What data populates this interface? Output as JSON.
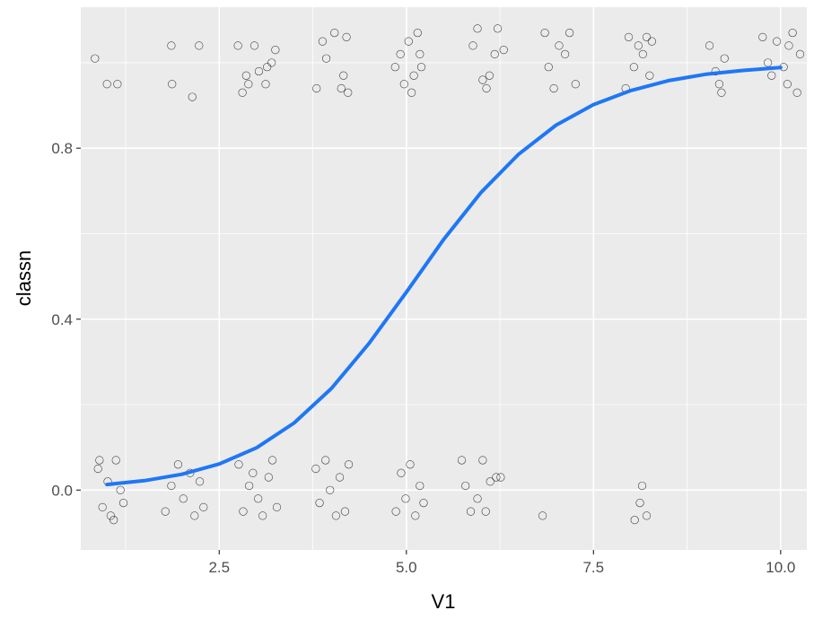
{
  "chart_data": {
    "type": "scatter",
    "title": "",
    "xlabel": "V1",
    "ylabel": "classn",
    "xlim": [
      0.65,
      10.35
    ],
    "ylim": [
      -0.14,
      1.13
    ],
    "x_ticks": [
      2.5,
      5.0,
      7.5,
      10.0
    ],
    "x_tick_labels": [
      "2.5",
      "5.0",
      "7.5",
      "10.0"
    ],
    "x_minor_ticks": [
      1.25,
      3.75,
      6.25,
      8.75
    ],
    "y_ticks": [
      0.0,
      0.4,
      0.8
    ],
    "y_tick_labels": [
      "0.0",
      "0.4",
      "0.8"
    ],
    "y_minor_ticks": [
      0.2,
      0.6,
      1.0
    ],
    "grid": true,
    "background": "#ebebeb",
    "grid_color": "#ffffff",
    "point_color": "#000000",
    "point_fill": "none",
    "curve_color": "#1f77f4",
    "points_approx": [
      [
        0.84,
        1.01
      ],
      [
        1.0,
        0.95
      ],
      [
        1.14,
        0.95
      ],
      [
        1.86,
        1.04
      ],
      [
        1.87,
        0.95
      ],
      [
        2.14,
        0.92
      ],
      [
        2.23,
        1.04
      ],
      [
        2.75,
        1.04
      ],
      [
        2.81,
        0.93
      ],
      [
        2.86,
        0.97
      ],
      [
        2.89,
        0.95
      ],
      [
        2.97,
        1.04
      ],
      [
        3.03,
        0.98
      ],
      [
        3.14,
        0.99
      ],
      [
        3.2,
        1.0
      ],
      [
        3.12,
        0.95
      ],
      [
        3.25,
        1.03
      ],
      [
        3.8,
        0.94
      ],
      [
        3.88,
        1.05
      ],
      [
        3.93,
        1.01
      ],
      [
        4.04,
        1.07
      ],
      [
        4.16,
        0.97
      ],
      [
        4.2,
        1.06
      ],
      [
        4.13,
        0.94
      ],
      [
        4.22,
        0.93
      ],
      [
        4.85,
        0.99
      ],
      [
        4.92,
        1.02
      ],
      [
        4.97,
        0.95
      ],
      [
        5.03,
        1.05
      ],
      [
        5.1,
        0.97
      ],
      [
        5.15,
        1.07
      ],
      [
        5.2,
        0.99
      ],
      [
        5.07,
        0.93
      ],
      [
        5.18,
        1.02
      ],
      [
        5.89,
        1.04
      ],
      [
        5.95,
        1.08
      ],
      [
        6.02,
        0.96
      ],
      [
        6.07,
        0.94
      ],
      [
        6.11,
        0.97
      ],
      [
        6.18,
        1.02
      ],
      [
        6.22,
        1.08
      ],
      [
        6.3,
        1.03
      ],
      [
        6.85,
        1.07
      ],
      [
        6.9,
        0.99
      ],
      [
        6.97,
        0.94
      ],
      [
        7.04,
        1.04
      ],
      [
        7.12,
        1.02
      ],
      [
        7.18,
        1.07
      ],
      [
        7.26,
        0.95
      ],
      [
        7.97,
        1.06
      ],
      [
        8.04,
        0.99
      ],
      [
        8.1,
        1.04
      ],
      [
        8.16,
        1.02
      ],
      [
        8.25,
        0.97
      ],
      [
        7.93,
        0.94
      ],
      [
        8.21,
        1.06
      ],
      [
        8.28,
        1.05
      ],
      [
        9.05,
        1.04
      ],
      [
        9.13,
        0.98
      ],
      [
        9.18,
        0.95
      ],
      [
        9.25,
        1.01
      ],
      [
        9.21,
        0.93
      ],
      [
        9.76,
        1.06
      ],
      [
        9.83,
        1.0
      ],
      [
        9.88,
        0.97
      ],
      [
        9.95,
        1.05
      ],
      [
        10.04,
        0.99
      ],
      [
        10.09,
        0.95
      ],
      [
        10.16,
        1.07
      ],
      [
        10.22,
        0.93
      ],
      [
        10.26,
        1.02
      ],
      [
        10.11,
        1.04
      ],
      [
        0.88,
        0.05
      ],
      [
        0.94,
        -0.04
      ],
      [
        1.01,
        0.02
      ],
      [
        1.05,
        -0.06
      ],
      [
        1.12,
        0.07
      ],
      [
        1.18,
        0.0
      ],
      [
        1.22,
        -0.03
      ],
      [
        0.9,
        0.07
      ],
      [
        1.09,
        -0.07
      ],
      [
        1.78,
        -0.05
      ],
      [
        1.86,
        0.01
      ],
      [
        1.95,
        0.06
      ],
      [
        2.02,
        -0.02
      ],
      [
        2.11,
        0.04
      ],
      [
        2.17,
        -0.06
      ],
      [
        2.24,
        0.02
      ],
      [
        2.29,
        -0.04
      ],
      [
        2.76,
        0.06
      ],
      [
        2.82,
        -0.05
      ],
      [
        2.9,
        0.01
      ],
      [
        2.95,
        0.04
      ],
      [
        3.02,
        -0.02
      ],
      [
        3.08,
        -0.06
      ],
      [
        3.16,
        0.03
      ],
      [
        3.21,
        0.07
      ],
      [
        3.27,
        -0.04
      ],
      [
        3.79,
        0.05
      ],
      [
        3.84,
        -0.03
      ],
      [
        3.92,
        0.07
      ],
      [
        3.98,
        0.0
      ],
      [
        4.06,
        -0.06
      ],
      [
        4.11,
        0.03
      ],
      [
        4.18,
        -0.05
      ],
      [
        4.23,
        0.06
      ],
      [
        4.86,
        -0.05
      ],
      [
        4.93,
        0.04
      ],
      [
        4.99,
        -0.02
      ],
      [
        5.05,
        0.06
      ],
      [
        5.12,
        -0.06
      ],
      [
        5.18,
        0.01
      ],
      [
        5.23,
        -0.03
      ],
      [
        5.74,
        0.07
      ],
      [
        5.79,
        0.01
      ],
      [
        5.86,
        -0.05
      ],
      [
        5.95,
        -0.02
      ],
      [
        6.02,
        0.07
      ],
      [
        6.06,
        -0.05
      ],
      [
        6.12,
        0.02
      ],
      [
        6.2,
        0.03
      ],
      [
        6.26,
        0.03
      ],
      [
        6.82,
        -0.06
      ],
      [
        8.05,
        -0.07
      ],
      [
        8.12,
        -0.03
      ],
      [
        8.15,
        0.01
      ],
      [
        8.21,
        -0.06
      ]
    ],
    "fit_curve": {
      "model": "logistic",
      "x_range": [
        1.0,
        10.0
      ],
      "x": [
        1.0,
        1.5,
        2.0,
        2.5,
        3.0,
        3.5,
        4.0,
        4.5,
        5.0,
        5.5,
        6.0,
        6.5,
        7.0,
        7.5,
        8.0,
        8.5,
        9.0,
        9.5,
        10.0
      ],
      "y": [
        0.013,
        0.022,
        0.037,
        0.061,
        0.099,
        0.157,
        0.238,
        0.343,
        0.463,
        0.587,
        0.697,
        0.786,
        0.854,
        0.902,
        0.935,
        0.958,
        0.973,
        0.982,
        0.989
      ]
    }
  }
}
